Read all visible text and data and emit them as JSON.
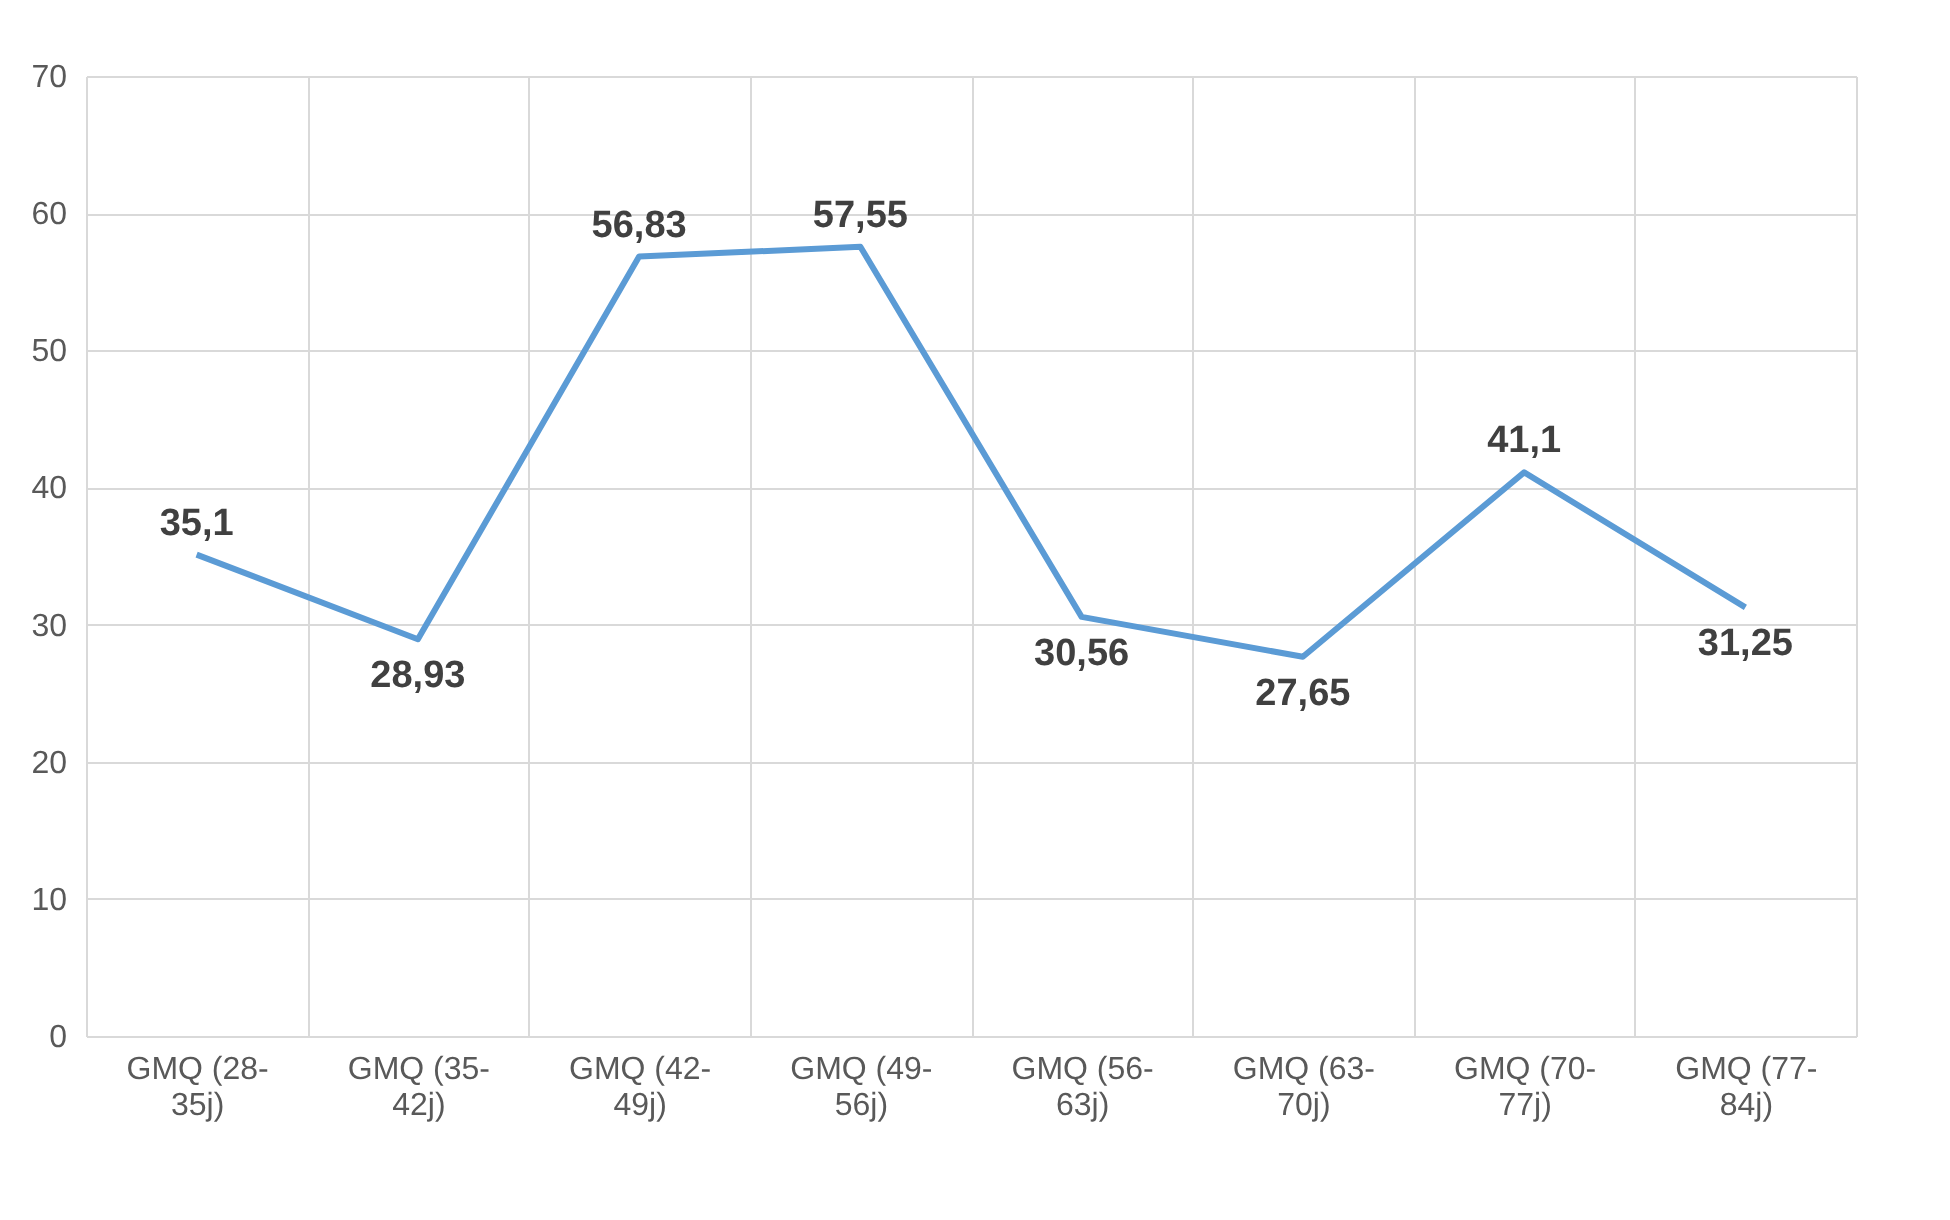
{
  "chart_data": {
    "type": "line",
    "categories": [
      "GMQ (28-35j)",
      "GMQ (35-42j)",
      "GMQ (42-49j)",
      "GMQ (49-56j)",
      "GMQ (56-63j)",
      "GMQ (63-70j)",
      "GMQ (70-77j)",
      "GMQ (77-84j)"
    ],
    "series": [
      {
        "color": "#5b9bd5",
        "values": [
          35.1,
          28.93,
          56.83,
          57.55,
          30.56,
          27.65,
          41.1,
          31.25
        ],
        "value_labels": [
          "35,1",
          "28,93",
          "56,83",
          "57,55",
          "30,56",
          "27,65",
          "41,1",
          "31,25"
        ]
      }
    ],
    "ylim": [
      0,
      70
    ],
    "yticks": [
      0,
      10,
      20,
      30,
      40,
      50,
      60,
      70
    ],
    "grid": true
  }
}
